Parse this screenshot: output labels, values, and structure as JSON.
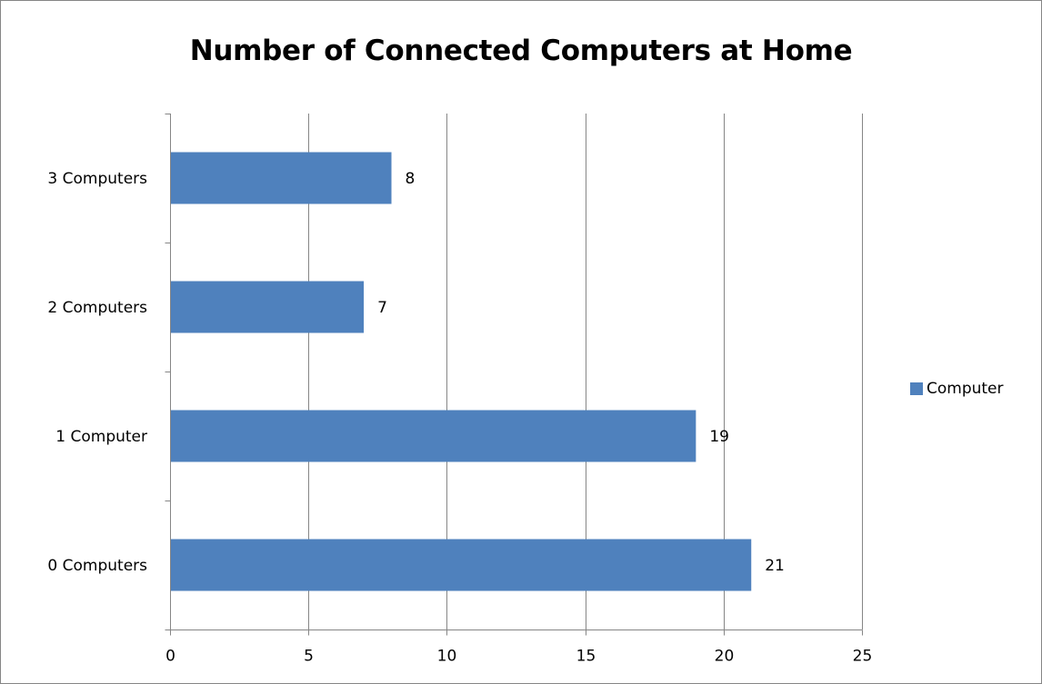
{
  "chart_data": {
    "type": "bar",
    "orientation": "horizontal",
    "title": "Number of Connected Computers at Home",
    "categories": [
      "0 Computers",
      "1 Computer",
      "2 Computers",
      "3 Computers"
    ],
    "series": [
      {
        "name": "Computer",
        "values": [
          21,
          19,
          7,
          8
        ],
        "color": "#4F81BD"
      }
    ],
    "xlim": [
      0,
      25
    ],
    "x_ticks": [
      0,
      5,
      10,
      15,
      20,
      25
    ],
    "grid": "vertical",
    "data_labels": true,
    "legend_position": "right"
  }
}
